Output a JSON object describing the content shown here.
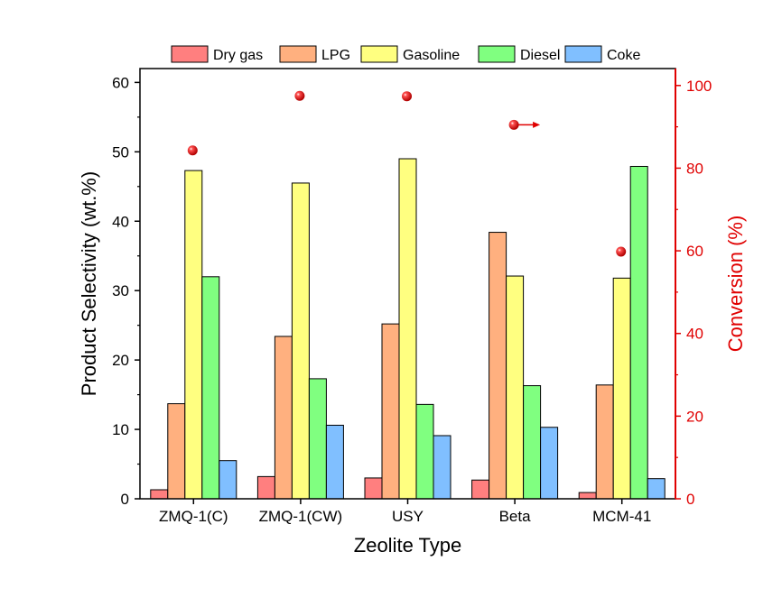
{
  "chart_data": {
    "type": "bar",
    "categories": [
      "ZMQ-1(C)",
      "ZMQ-1(CW)",
      "USY",
      "Beta",
      "MCM-41"
    ],
    "series": [
      {
        "name": "Dry gas",
        "color": "#ff7f7f",
        "values": [
          1.3,
          3.2,
          3.0,
          2.7,
          0.9
        ]
      },
      {
        "name": "LPG",
        "color": "#ffb07f",
        "values": [
          13.7,
          23.4,
          25.2,
          38.4,
          16.4
        ]
      },
      {
        "name": "Gasoline",
        "color": "#ffff80",
        "values": [
          47.3,
          45.5,
          49.0,
          32.1,
          31.8
        ]
      },
      {
        "name": "Diesel",
        "color": "#80ff80",
        "values": [
          32.0,
          17.3,
          13.6,
          16.3,
          47.9
        ]
      },
      {
        "name": "Coke",
        "color": "#80bfff",
        "values": [
          5.5,
          10.6,
          9.1,
          10.3,
          2.9
        ]
      }
    ],
    "secondary_series": {
      "axis": "right",
      "marker": "sphere",
      "color": "#e00000",
      "values": [
        84.3,
        97.5,
        97.4,
        90.5,
        59.8
      ]
    },
    "xlabel": "Zeolite Type",
    "ylabel": "Product Selectivity (wt.%)",
    "ylabel_right": "Conversion (%)",
    "ylim": [
      0,
      62
    ],
    "yticks": [
      0,
      10,
      20,
      30,
      40,
      50,
      60
    ],
    "ylim_right": [
      0,
      104.1
    ],
    "yticks_right": [
      0,
      20,
      40,
      60,
      80,
      100
    ],
    "legend_position": "top",
    "grid": false,
    "colors": {
      "right_axis": "#e00000"
    }
  }
}
